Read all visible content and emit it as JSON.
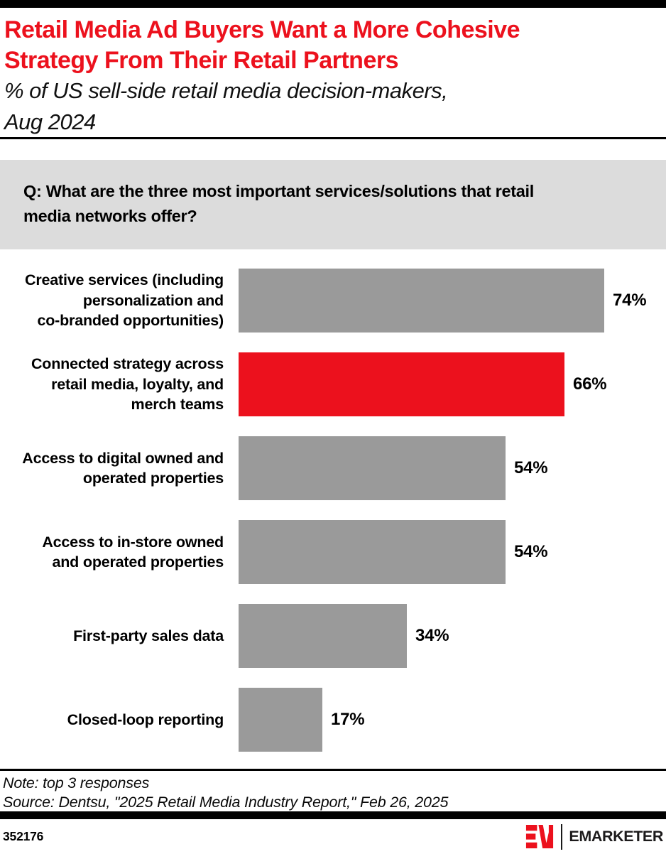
{
  "header": {
    "title": "Retail Media Ad Buyers Want a More Cohesive\nStrategy From Their Retail Partners",
    "subtitle": "% of US sell-side retail media decision-makers,\nAug 2024"
  },
  "question": {
    "text": "Q: What are the three most important services/solutions that retail\nmedia networks offer?"
  },
  "chart_data": {
    "type": "bar",
    "orientation": "horizontal",
    "title": "Retail Media Ad Buyers Want a More Cohesive Strategy From Their Retail Partners",
    "subtitle": "% of US sell-side retail media decision-makers, Aug 2024",
    "categories": [
      "Creative services (including\npersonalization and\nco-branded opportunities)",
      "Connected strategy across\nretail media, loyalty, and\nmerch teams",
      "Access to digital owned and\noperated properties",
      "Access to in-store owned\nand operated properties",
      "First-party sales data",
      "Closed-loop reporting"
    ],
    "values": [
      74,
      66,
      54,
      54,
      34,
      17
    ],
    "value_suffix": "%",
    "value_labels": [
      "74%",
      "66%",
      "54%",
      "54%",
      "34%",
      "17%"
    ],
    "xlim": [
      0,
      74
    ],
    "grid": false,
    "legend": false,
    "highlight_index": 1
  },
  "colors": {
    "accent_red": "#EC111D",
    "bar_gray": "#9A9A9A",
    "question_bg": "#DCDCDC",
    "text_black": "#000000"
  },
  "footer": {
    "note": "Note: top 3 responses",
    "source": "Source: Dentsu, \"2025 Retail Media Industry Report,\" Feb 26, 2025",
    "chart_id": "352176",
    "brand": "EMARKETER"
  }
}
